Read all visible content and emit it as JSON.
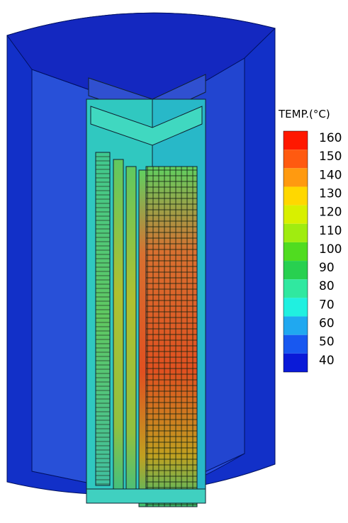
{
  "legend": {
    "title": "TEMP.(°C)",
    "labels": [
      160,
      150,
      140,
      130,
      120,
      110,
      100,
      90,
      80,
      70,
      60,
      50,
      40
    ],
    "colors": [
      "#ff1800",
      "#ff5a10",
      "#ff9a10",
      "#ffd800",
      "#d8f000",
      "#a0ec10",
      "#50dc20",
      "#28d050",
      "#30e8a0",
      "#20f0e0",
      "#20a8f0",
      "#1858f0",
      "#0a1ad8"
    ]
  }
}
